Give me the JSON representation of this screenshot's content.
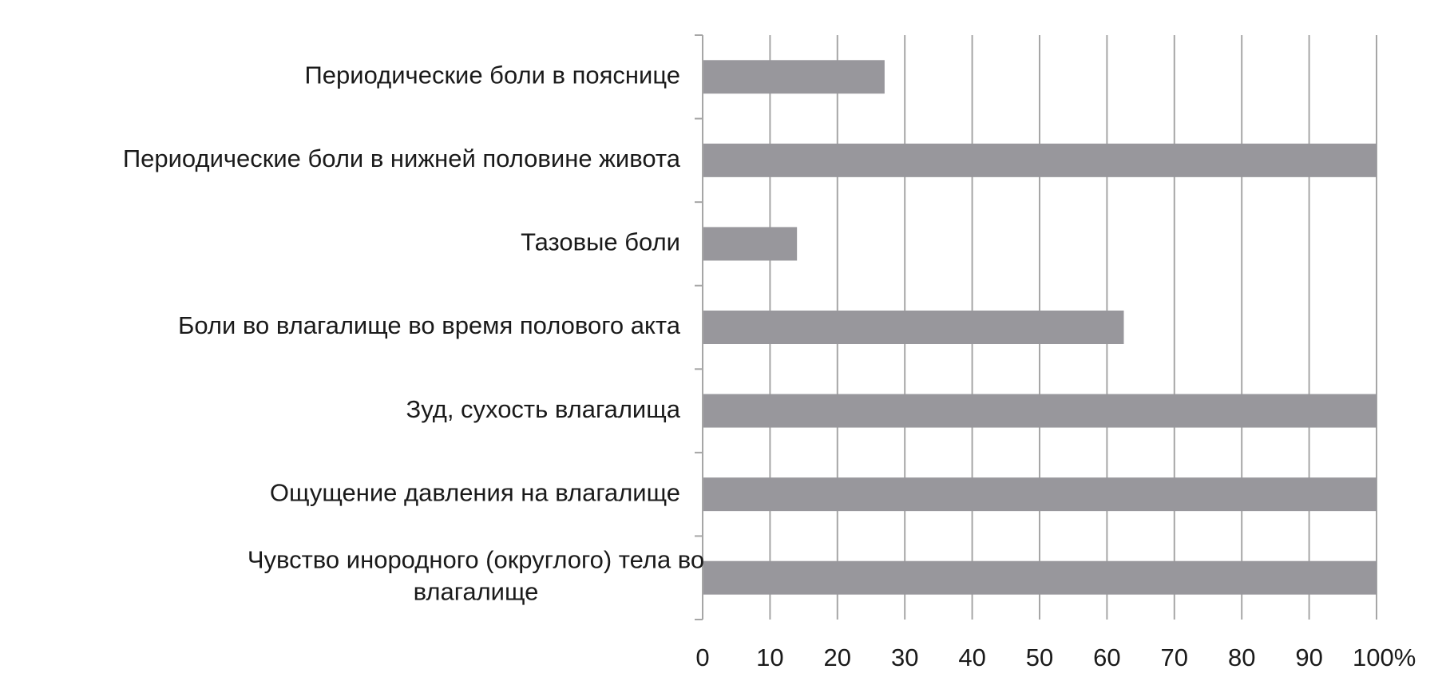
{
  "chart_data": {
    "type": "bar",
    "orientation": "horizontal",
    "title": "",
    "xlabel": "",
    "ylabel": "",
    "categories": [
      "Периодические боли в пояснице",
      "Периодические боли в нижней половине живота",
      "Тазовые боли",
      "Боли во влагалище во время полового акта",
      "Зуд, сухость влагалища",
      "Ощущение давления на влагалище",
      "Чувство инородного (округлого) тела во влагалище"
    ],
    "category_label_lines": [
      [
        "Периодические боли в пояснице"
      ],
      [
        "Периодические боли в нижней половине живота"
      ],
      [
        "Тазовые боли"
      ],
      [
        "Боли во влагалище во время полового акта"
      ],
      [
        "Зуд, сухость влагалища"
      ],
      [
        "Ощущение давления на влагалище"
      ],
      [
        "Чувство инородного (округлого) тела во",
        "влагалище"
      ]
    ],
    "values": [
      27,
      100,
      14,
      62.5,
      100,
      100,
      100
    ],
    "xlim": [
      0,
      100
    ],
    "xticks": [
      0,
      10,
      20,
      30,
      40,
      50,
      60,
      70,
      80,
      90,
      100
    ],
    "xtick_labels": [
      "0",
      "10",
      "20",
      "30",
      "40",
      "50",
      "60",
      "70",
      "80",
      "90",
      "100%"
    ],
    "grid": true,
    "legend": "none",
    "bar_color": "#98979c",
    "grid_color": "#a6a6a6",
    "text_color": "#1a1a1a"
  }
}
